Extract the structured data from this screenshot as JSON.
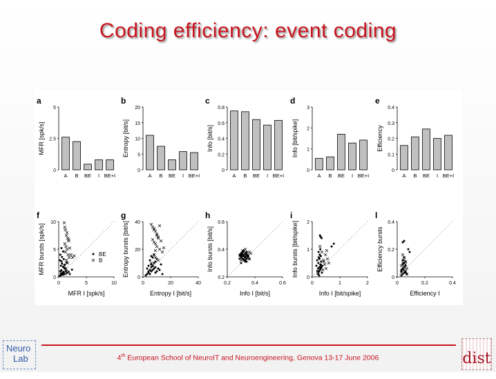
{
  "slide": {
    "title": "Coding efficiency: event coding",
    "footer_sup": "th",
    "footer_pre": "4",
    "footer_text": " European School of NeuroIT and Neuroengineering, Genova 13-17 June 2006",
    "logo_left_line1": "Neuro",
    "logo_left_line2": "Lab",
    "logo_right": "dist"
  },
  "chart_data": [
    {
      "panel": "a",
      "type": "bar",
      "categories": [
        "A",
        "B",
        "BE",
        "I",
        "BE+I"
      ],
      "values": [
        2.6,
        2.25,
        0.45,
        0.8,
        0.8
      ],
      "ylabel": "MFR [spk/s]",
      "ylim": [
        0,
        5
      ],
      "yticks": [
        "0",
        "2.5",
        "5"
      ]
    },
    {
      "panel": "b",
      "type": "bar",
      "categories": [
        "A",
        "B",
        "BE",
        "I",
        "BE+I"
      ],
      "values": [
        11,
        7.5,
        3.2,
        5.8,
        5.5
      ],
      "ylabel": "Entropy [bit/s]",
      "ylim": [
        0,
        20
      ],
      "yticks": [
        "0",
        "5",
        "10",
        "15",
        "20"
      ]
    },
    {
      "panel": "c",
      "type": "bar",
      "categories": [
        "A",
        "B",
        "BE",
        "I",
        "BE+I"
      ],
      "values": [
        0.75,
        0.74,
        0.64,
        0.57,
        0.63
      ],
      "ylabel": "Info [bit/s]",
      "ylim": [
        0,
        0.8
      ],
      "yticks": [
        "0",
        "0.2",
        "0.4",
        "0.6",
        "0.8"
      ]
    },
    {
      "panel": "d",
      "type": "bar",
      "categories": [
        "A",
        "B",
        "BE",
        "I",
        "BE+I"
      ],
      "values": [
        0.55,
        0.62,
        1.7,
        1.28,
        1.42
      ],
      "ylabel": "Info [bit/spike]",
      "ylim": [
        0,
        3
      ],
      "yticks": [
        "0",
        "1",
        "2",
        "3"
      ]
    },
    {
      "panel": "e",
      "type": "bar",
      "categories": [
        "A",
        "B",
        "BE",
        "I",
        "BE+I"
      ],
      "values": [
        0.155,
        0.21,
        0.26,
        0.2,
        0.22
      ],
      "ylabel": "Efficiency",
      "ylim": [
        0,
        0.4
      ],
      "yticks": [
        "0",
        "0.1",
        "0.2",
        "0.3",
        "0.4"
      ]
    },
    {
      "panel": "f",
      "type": "scatter",
      "xlabel": "MFR I [spk/s]",
      "ylabel": "MFR bursts [spk/s]",
      "xlim": [
        0,
        10
      ],
      "ylim": [
        0,
        10
      ],
      "xticks": [
        "0",
        "5",
        "10"
      ],
      "yticks": [
        "0",
        "5",
        "10"
      ],
      "legend": [
        "BE",
        "B"
      ],
      "series": [
        {
          "marker": "dot",
          "x": [
            0.2,
            0.4,
            0.6,
            0.8,
            1.0,
            0.3,
            0.5,
            0.7,
            0.9,
            1.2,
            1.5,
            0.4,
            0.6,
            0.8,
            1.1,
            0.2,
            0.5,
            0.9,
            1.3,
            1.8,
            0.3,
            0.6,
            1.0,
            0.4,
            0.7,
            2.0,
            2.4,
            0.5,
            0.8,
            1.4
          ],
          "y": [
            0.2,
            0.3,
            0.5,
            0.4,
            0.6,
            1.0,
            1.2,
            0.8,
            0.9,
            1.5,
            0.7,
            2.0,
            2.4,
            1.8,
            2.2,
            3.0,
            2.8,
            3.2,
            1.1,
            0.9,
            4.0,
            3.6,
            1.6,
            0.6,
            0.4,
            0.5,
            1.3,
            5.2,
            4.6,
            2.6
          ]
        },
        {
          "marker": "x",
          "x": [
            1.0,
            1.2,
            1.4,
            1.6,
            1.8,
            1.1,
            1.3,
            1.5,
            1.2,
            1.7,
            1.9,
            1.4,
            1.6,
            1.0,
            1.3,
            2.2,
            2.5,
            2.8,
            1.5,
            1.1,
            1.8,
            2.0,
            1.4,
            1.2
          ],
          "y": [
            9.8,
            8.5,
            7.5,
            7.0,
            6.5,
            6.0,
            5.5,
            5.0,
            4.5,
            4.0,
            3.5,
            3.0,
            2.5,
            2.0,
            1.5,
            4.0,
            3.5,
            3.8,
            8.0,
            9.0,
            6.8,
            5.2,
            1.0,
            0.5
          ]
        }
      ]
    },
    {
      "panel": "g",
      "type": "scatter",
      "xlabel": "Entropy I [bit/s]",
      "ylabel": "Entropy bursts [bit/s]",
      "xlim": [
        0,
        40
      ],
      "ylim": [
        0,
        40
      ],
      "xticks": [
        "0",
        "20",
        "40"
      ],
      "yticks": [
        "0",
        "20",
        "40"
      ],
      "series": [
        {
          "marker": "dot",
          "x": [
            2,
            3,
            4,
            5,
            6,
            7,
            8,
            9,
            10,
            4,
            6,
            8,
            5,
            7,
            9,
            11,
            12,
            3,
            5,
            7,
            9,
            6,
            8,
            10,
            13,
            14,
            4,
            6
          ],
          "y": [
            1,
            2,
            3,
            2,
            4,
            5,
            6,
            3,
            4,
            8,
            9,
            10,
            12,
            14,
            7,
            6,
            5,
            6,
            5,
            8,
            11,
            15,
            16,
            13,
            9,
            2,
            4,
            7
          ]
        },
        {
          "marker": "x",
          "x": [
            6,
            7,
            8,
            9,
            10,
            11,
            7,
            8,
            9,
            10,
            12,
            14,
            8,
            9,
            11,
            6,
            7,
            13,
            15,
            10,
            8,
            12,
            9,
            11
          ],
          "y": [
            38,
            36,
            35,
            33,
            30,
            28,
            27,
            25,
            24,
            22,
            20,
            18,
            16,
            14,
            12,
            10,
            8,
            26,
            21,
            31,
            34,
            37,
            19,
            29
          ]
        }
      ]
    },
    {
      "panel": "h",
      "type": "scatter",
      "xlabel": "Info I [bit/s]",
      "ylabel": "Info bursts [bit/s]",
      "xlim": [
        0.2,
        0.6
      ],
      "ylim": [
        0.2,
        0.6
      ],
      "xticks": [
        "0.2",
        "0.4",
        "0.6"
      ],
      "yticks": [
        "0.2",
        "0.4",
        "0.6"
      ],
      "series": [
        {
          "marker": "dot",
          "x": [
            0.29,
            0.3,
            0.31,
            0.32,
            0.33,
            0.34,
            0.35,
            0.3,
            0.31,
            0.32,
            0.33,
            0.34,
            0.29,
            0.31,
            0.33,
            0.35,
            0.3,
            0.32,
            0.34,
            0.31,
            0.33,
            0.32,
            0.3,
            0.34,
            0.36
          ],
          "y": [
            0.33,
            0.34,
            0.35,
            0.36,
            0.34,
            0.33,
            0.35,
            0.37,
            0.38,
            0.32,
            0.31,
            0.36,
            0.36,
            0.33,
            0.37,
            0.34,
            0.3,
            0.35,
            0.38,
            0.36,
            0.32,
            0.39,
            0.35,
            0.31,
            0.33
          ]
        },
        {
          "marker": "x",
          "x": [
            0.3,
            0.31,
            0.32,
            0.33,
            0.34,
            0.35,
            0.36,
            0.31,
            0.33,
            0.35,
            0.32,
            0.34,
            0.3,
            0.37,
            0.33,
            0.29,
            0.36,
            0.32
          ],
          "y": [
            0.36,
            0.37,
            0.38,
            0.35,
            0.37,
            0.36,
            0.38,
            0.39,
            0.4,
            0.34,
            0.33,
            0.35,
            0.32,
            0.37,
            0.34,
            0.35,
            0.33,
            0.36
          ]
        }
      ]
    },
    {
      "panel": "i",
      "type": "scatter",
      "xlabel": "Info I [bit/spike]",
      "ylabel": "Info bursts [bit/spike]",
      "xlim": [
        0,
        2
      ],
      "ylim": [
        0,
        2
      ],
      "xticks": [
        "0",
        "1",
        "2"
      ],
      "yticks": [
        "0",
        "1",
        "2"
      ],
      "series": [
        {
          "marker": "dot",
          "x": [
            0.2,
            0.25,
            0.3,
            0.35,
            0.15,
            0.22,
            0.28,
            0.33,
            0.18,
            0.24,
            0.3,
            0.27,
            0.32,
            0.21,
            0.26,
            0.19,
            0.23,
            0.29,
            0.31,
            0.25,
            0.7,
            0.78,
            0.28,
            0.3,
            0.34,
            0.36,
            0.22,
            0.26
          ],
          "y": [
            0.1,
            0.2,
            0.3,
            0.15,
            0.4,
            0.5,
            0.25,
            0.35,
            0.6,
            0.7,
            0.45,
            0.8,
            0.55,
            0.3,
            0.65,
            0.2,
            0.9,
            1.0,
            0.75,
            0.05,
            1.1,
            1.2,
            1.5,
            1.45,
            1.4,
            0.4,
            0.2,
            0.35
          ]
        },
        {
          "marker": "x",
          "x": [
            0.2,
            0.3,
            0.4,
            0.5,
            0.6,
            0.25,
            0.35,
            0.45,
            0.55,
            0.28,
            0.38,
            0.48,
            0.32,
            0.42,
            0.22,
            0.52
          ],
          "y": [
            0.2,
            0.4,
            0.6,
            0.3,
            0.5,
            0.7,
            0.9,
            0.45,
            0.65,
            1.1,
            0.25,
            0.8,
            0.35,
            0.55,
            0.15,
            0.95
          ]
        }
      ]
    },
    {
      "panel": "l",
      "type": "scatter",
      "xlabel": "Efficiency I",
      "ylabel": "Efficiency bursts",
      "xlim": [
        0,
        0.4
      ],
      "ylim": [
        0,
        0.4
      ],
      "xticks": [
        "0",
        "0.2",
        "0.4"
      ],
      "yticks": [
        "0",
        "0.2",
        "0.4"
      ],
      "series": [
        {
          "marker": "dot",
          "x": [
            0.03,
            0.04,
            0.05,
            0.06,
            0.03,
            0.04,
            0.05,
            0.06,
            0.07,
            0.04,
            0.05,
            0.03,
            0.06,
            0.05,
            0.04,
            0.08,
            0.09,
            0.05,
            0.04,
            0.06
          ],
          "y": [
            0.01,
            0.02,
            0.03,
            0.04,
            0.05,
            0.06,
            0.07,
            0.08,
            0.02,
            0.09,
            0.1,
            0.04,
            0.11,
            0.26,
            0.25,
            0.2,
            0.18,
            0.14,
            0.12,
            0.03
          ]
        },
        {
          "marker": "x",
          "x": [
            0.03,
            0.04,
            0.05,
            0.06,
            0.07,
            0.04,
            0.05,
            0.06,
            0.03,
            0.05,
            0.04,
            0.06,
            0.07,
            0.05
          ],
          "y": [
            0.03,
            0.05,
            0.07,
            0.04,
            0.06,
            0.1,
            0.12,
            0.09,
            0.08,
            0.14,
            0.16,
            0.11,
            0.02,
            0.05
          ]
        }
      ]
    }
  ]
}
